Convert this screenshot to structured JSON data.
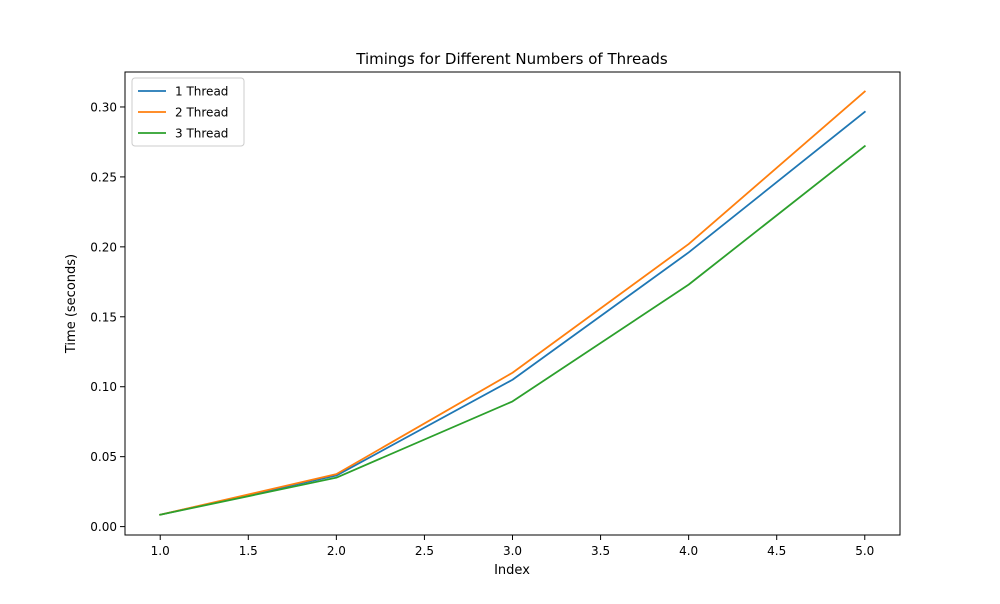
{
  "chart_data": {
    "type": "line",
    "title": "Timings for Different Numbers of Threads",
    "xlabel": "Index",
    "ylabel": "Time (seconds)",
    "x": [
      1,
      2,
      3,
      4,
      5
    ],
    "xlim": [
      0.8,
      5.2
    ],
    "ylim": [
      -0.006,
      0.325
    ],
    "xticks": [
      1.0,
      1.5,
      2.0,
      2.5,
      3.0,
      3.5,
      4.0,
      4.5,
      5.0
    ],
    "xtick_labels": [
      "1.0",
      "1.5",
      "2.0",
      "2.5",
      "3.0",
      "3.5",
      "4.0",
      "4.5",
      "5.0"
    ],
    "yticks": [
      0.0,
      0.05,
      0.1,
      0.15,
      0.2,
      0.25,
      0.3
    ],
    "ytick_labels": [
      "0.00",
      "0.05",
      "0.10",
      "0.15",
      "0.20",
      "0.25",
      "0.30"
    ],
    "grid": false,
    "legend_position": "top-left",
    "series": [
      {
        "name": "1 Thread",
        "color": "#1f77b4",
        "values": [
          0.0085,
          0.0365,
          0.105,
          0.196,
          0.2965
        ]
      },
      {
        "name": "2 Thread",
        "color": "#ff7f0e",
        "values": [
          0.0085,
          0.0375,
          0.11,
          0.202,
          0.311
        ]
      },
      {
        "name": "3 Thread",
        "color": "#2ca02c",
        "values": [
          0.0085,
          0.035,
          0.0895,
          0.173,
          0.272
        ]
      }
    ]
  }
}
